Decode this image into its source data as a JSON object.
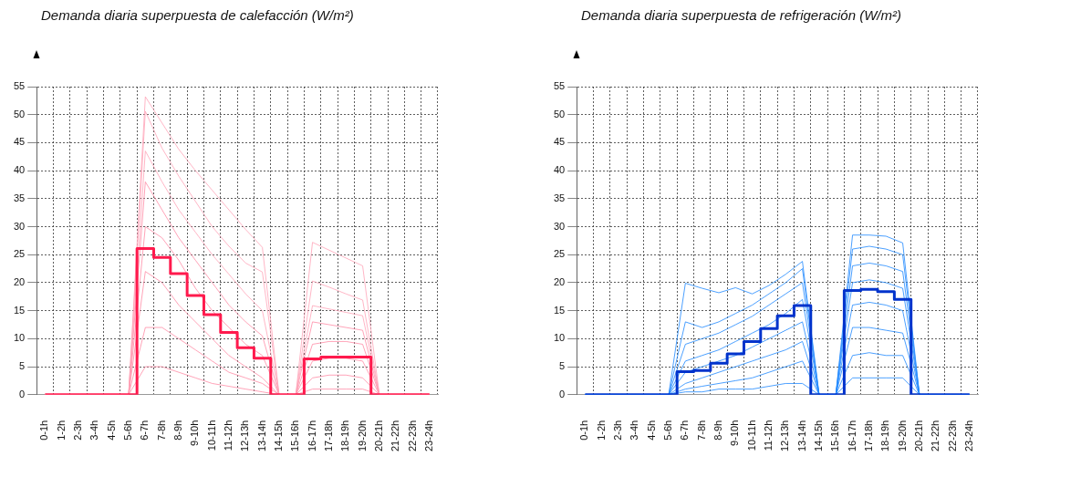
{
  "chart_data": [
    {
      "type": "line",
      "title": "Demanda diaria superpuesta de calefacción (W/m²)",
      "categories": [
        "0-1h",
        "1-2h",
        "2-3h",
        "3-4h",
        "4-5h",
        "5-6h",
        "6-7h",
        "7-8h",
        "8-9h",
        "9-10h",
        "10-11h",
        "11-12h",
        "12-13h",
        "13-14h",
        "14-15h",
        "15-16h",
        "16-17h",
        "17-18h",
        "18-19h",
        "19-20h",
        "20-21h",
        "21-22h",
        "22-23h",
        "23-24h"
      ],
      "ylim": [
        0,
        55
      ],
      "yticks": [
        0,
        5,
        10,
        15,
        20,
        25,
        30,
        35,
        40,
        45,
        50,
        55
      ],
      "grid": true,
      "series": [
        {
          "color": "#ffa3b8",
          "values": [
            0,
            0,
            0,
            0,
            0,
            0,
            53.2,
            48.5,
            43.8,
            40,
            36.5,
            33,
            29.5,
            26.3,
            0,
            0,
            27.2,
            25.8,
            24.4,
            23,
            0,
            0,
            0,
            0
          ]
        },
        {
          "color": "#ffa3b8",
          "values": [
            0,
            0,
            0,
            0,
            0,
            0,
            50.6,
            44,
            39,
            34.5,
            30,
            26.5,
            23.5,
            21.9,
            0,
            0,
            20.3,
            19.2,
            18,
            16.9,
            0,
            0,
            0,
            0
          ]
        },
        {
          "color": "#ffa3b8",
          "values": [
            0,
            0,
            0,
            0,
            0,
            0,
            43.5,
            38,
            33,
            29,
            25,
            21.5,
            18,
            15,
            0,
            0,
            15.9,
            15.3,
            14.7,
            14.1,
            0,
            0,
            0,
            0
          ]
        },
        {
          "color": "#ff8ca6",
          "values": [
            0,
            0,
            0,
            0,
            0,
            0,
            38,
            33,
            28,
            24,
            20,
            16,
            13,
            10.5,
            0,
            0,
            13,
            12.5,
            12,
            11.5,
            0,
            0,
            0,
            0
          ]
        },
        {
          "color": "#ff8ca6",
          "values": [
            0,
            0,
            0,
            0,
            0,
            0,
            30,
            28,
            24,
            19,
            15,
            12,
            9,
            7,
            0,
            0,
            9,
            9.5,
            9.5,
            9,
            0,
            0,
            0,
            0
          ]
        },
        {
          "color": "#ff8ca6",
          "values": [
            0,
            0,
            0,
            0,
            0,
            0,
            22,
            20,
            16,
            13,
            10,
            7,
            5,
            3,
            0,
            0,
            6,
            6.5,
            6.5,
            6,
            0,
            0,
            0,
            0
          ]
        },
        {
          "color": "#ff8ca6",
          "values": [
            0,
            0,
            0,
            0,
            0,
            0,
            12,
            12,
            10,
            8,
            6,
            4,
            3,
            2,
            0,
            0,
            3,
            3.5,
            3.5,
            3,
            0,
            0,
            0,
            0
          ]
        },
        {
          "color": "#ff8ca6",
          "values": [
            0,
            0,
            0,
            0,
            0,
            0,
            5,
            5,
            4,
            3,
            2,
            1.5,
            1,
            0.5,
            0,
            0,
            1,
            1,
            1,
            1,
            0,
            0,
            0,
            0
          ]
        },
        {
          "type": "step",
          "color": "#ff1a4d",
          "values": [
            0,
            0,
            0,
            0,
            0,
            0,
            26.1,
            24.5,
            21.6,
            17.7,
            14.3,
            11.1,
            8.4,
            6.5,
            0,
            0,
            6.4,
            6.7,
            6.7,
            6.7,
            0,
            0,
            0,
            0
          ]
        }
      ]
    },
    {
      "type": "line",
      "title": "Demanda diaria superpuesta de refrigeración (W/m²)",
      "categories": [
        "0-1h",
        "1-2h",
        "2-3h",
        "3-4h",
        "4-5h",
        "5-6h",
        "6-7h",
        "7-8h",
        "8-9h",
        "9-10h",
        "10-11h",
        "11-12h",
        "12-13h",
        "13-14h",
        "14-15h",
        "15-16h",
        "16-17h",
        "17-18h",
        "18-19h",
        "19-20h",
        "20-21h",
        "21-22h",
        "22-23h",
        "23-24h"
      ],
      "ylim": [
        0,
        55
      ],
      "yticks": [
        0,
        5,
        10,
        15,
        20,
        25,
        30,
        35,
        40,
        45,
        50,
        55
      ],
      "grid": true,
      "series": [
        {
          "color": "#1e88ff",
          "values": [
            0,
            0,
            0,
            0,
            0,
            0,
            19.9,
            19,
            18.2,
            19.1,
            18,
            19.5,
            21.5,
            23.8,
            0,
            0,
            28.5,
            28.5,
            28.3,
            27.1,
            0,
            0,
            0,
            0
          ]
        },
        {
          "color": "#1e88ff",
          "values": [
            0,
            0,
            0,
            0,
            0,
            0,
            13,
            12,
            13,
            14.5,
            16,
            18,
            20,
            22.5,
            0,
            0,
            26,
            26.5,
            26,
            25,
            0,
            0,
            0,
            0
          ]
        },
        {
          "color": "#1e88ff",
          "values": [
            0,
            0,
            0,
            0,
            0,
            0,
            9,
            10,
            11,
            12.5,
            14,
            16,
            18,
            20,
            0,
            0,
            23,
            23.5,
            23,
            22,
            0,
            0,
            0,
            0
          ]
        },
        {
          "color": "#1e88ff",
          "values": [
            0,
            0,
            0,
            0,
            0,
            0,
            6,
            7,
            8,
            9.5,
            11,
            12.5,
            14.5,
            17,
            0,
            0,
            20,
            20.5,
            20,
            19,
            0,
            0,
            0,
            0
          ]
        },
        {
          "color": "#1e88ff",
          "values": [
            0,
            0,
            0,
            0,
            0,
            0,
            4,
            5,
            6,
            7,
            8.5,
            10,
            11.5,
            13,
            0,
            0,
            16,
            16.5,
            16,
            15,
            0,
            0,
            0,
            0
          ]
        },
        {
          "color": "#1e88ff",
          "values": [
            0,
            0,
            0,
            0,
            0,
            0,
            2,
            3,
            4,
            5,
            6,
            7,
            8,
            9.5,
            0,
            0,
            12,
            12,
            11.5,
            11,
            0,
            0,
            0,
            0
          ]
        },
        {
          "color": "#1e88ff",
          "values": [
            0,
            0,
            0,
            0,
            0,
            0,
            1,
            1.5,
            2,
            2.5,
            3,
            4,
            5,
            6,
            0,
            0,
            7,
            7.5,
            7,
            7,
            0,
            0,
            0,
            0
          ]
        },
        {
          "color": "#1e88ff",
          "values": [
            0,
            0,
            0,
            0,
            0,
            0,
            0.5,
            0.5,
            1,
            1,
            1,
            1.5,
            2,
            2,
            0,
            0,
            3,
            3,
            3,
            3,
            0,
            0,
            0,
            0
          ]
        },
        {
          "type": "step",
          "color": "#0033cc",
          "values": [
            0,
            0,
            0,
            0,
            0,
            0,
            4.1,
            4.3,
            5.6,
            7.3,
            9.5,
            11.8,
            14.1,
            15.9,
            0,
            0,
            18.6,
            18.8,
            18.4,
            17,
            0,
            0,
            0,
            0
          ]
        }
      ]
    }
  ]
}
